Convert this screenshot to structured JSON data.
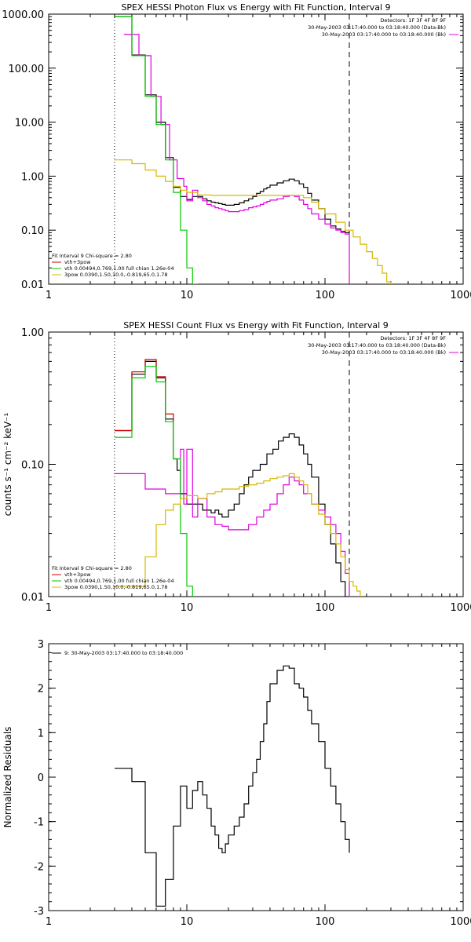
{
  "chart_data": [
    {
      "type": "line",
      "title": "SPEX HESSI Photon Flux vs Energy with Fit Function, Interval 9",
      "xscale": "log",
      "yscale": "log",
      "xlim": [
        1,
        1000
      ],
      "ylim": [
        0.01,
        1000
      ],
      "xticks": [
        1,
        10,
        100,
        1000
      ],
      "xtick_labels": [
        "1",
        "10",
        "100",
        "1000"
      ],
      "yticks": [
        0.01,
        0.1,
        1,
        10,
        100,
        1000
      ],
      "ytick_labels": [
        "0.01",
        "0.10",
        "1.00",
        "10.00",
        "100.00",
        "1000.00"
      ],
      "header_lines": [
        "Detectors: 1F 3F 4F 8F 9F",
        "30-May-2003 03:17:40.000 to 03:18:40.000 (Data-Bk)",
        "30-May-2003 03:17:40.000 to 03:18:40.000 (Bk)"
      ],
      "header_colors": [
        "#000000",
        "#000000",
        "#e000e0"
      ],
      "legend": [
        {
          "text": "Fit Interval 9   Chi-square = 2.80",
          "color": "#000000",
          "swatch": false
        },
        {
          "text": "vth+3pow",
          "color": "#d00000",
          "swatch": true
        },
        {
          "text": "vth 0.00494,0.769,1.00  full chian 1.26e-04",
          "color": "#00cc00",
          "swatch": true
        },
        {
          "text": "3pow 0.0390,1.50,10.0,-0.819,65.0,1.78",
          "color": "#d4b800",
          "swatch": true
        }
      ],
      "vlines": [
        {
          "x": 3,
          "style": "dotted"
        },
        {
          "x": 150,
          "style": "dashed"
        }
      ],
      "series": [
        {
          "color": "#000000",
          "x": [
            3,
            3.5,
            4,
            4.5,
            5,
            5.5,
            6,
            6.5,
            7,
            7.5,
            8,
            8.5,
            9,
            10,
            11,
            12,
            13,
            14,
            15,
            16,
            17,
            18,
            19,
            20,
            22,
            24,
            26,
            28,
            30,
            32,
            34,
            36,
            38,
            40,
            45,
            50,
            55,
            60,
            65,
            70,
            75,
            80,
            90,
            100,
            110,
            120,
            130,
            140,
            150
          ],
          "y": [
            900,
            900,
            175,
            175,
            32,
            32,
            10,
            10,
            2.2,
            2.2,
            0.62,
            0.62,
            0.42,
            0.37,
            0.42,
            0.42,
            0.38,
            0.35,
            0.33,
            0.32,
            0.31,
            0.3,
            0.29,
            0.29,
            0.3,
            0.32,
            0.35,
            0.38,
            0.42,
            0.48,
            0.52,
            0.58,
            0.62,
            0.68,
            0.75,
            0.82,
            0.88,
            0.82,
            0.72,
            0.62,
            0.48,
            0.36,
            0.25,
            0.16,
            0.12,
            0.105,
            0.095,
            0.09,
            0.09
          ]
        },
        {
          "color": "#e000e0",
          "x": [
            3.5,
            4,
            4.5,
            5,
            5.5,
            6,
            6.5,
            7,
            7.5,
            8,
            8.5,
            9,
            9.5,
            10,
            11,
            12,
            13,
            14,
            15,
            16,
            17,
            18,
            19,
            20,
            22,
            24,
            26,
            28,
            30,
            32,
            34,
            36,
            38,
            40,
            45,
            50,
            55,
            60,
            65,
            70,
            75,
            80,
            90,
            100,
            110,
            120,
            130,
            140,
            150
          ],
          "y": [
            420,
            420,
            170,
            170,
            30,
            30,
            9,
            9,
            2,
            2,
            0.9,
            0.9,
            0.65,
            0.35,
            0.55,
            0.4,
            0.35,
            0.3,
            0.28,
            0.26,
            0.25,
            0.24,
            0.23,
            0.22,
            0.22,
            0.23,
            0.24,
            0.26,
            0.27,
            0.28,
            0.3,
            0.32,
            0.34,
            0.36,
            0.38,
            0.42,
            0.44,
            0.42,
            0.36,
            0.3,
            0.25,
            0.2,
            0.16,
            0.13,
            0.11,
            0.1,
            0.09,
            0.085,
            0.01
          ]
        },
        {
          "color": "#00cc00",
          "x": [
            3,
            3.5,
            4,
            4.5,
            5,
            5.5,
            6,
            6.5,
            7,
            7.5,
            8,
            8.5,
            9,
            9.5,
            10,
            11,
            12
          ],
          "y": [
            900,
            900,
            170,
            170,
            30,
            30,
            9,
            9,
            2,
            2,
            0.5,
            0.5,
            0.1,
            0.1,
            0.02,
            0.01,
            0.01
          ]
        },
        {
          "color": "#d4b800",
          "x": [
            3,
            3.5,
            4,
            4.5,
            5,
            5.5,
            6,
            6.5,
            7,
            7.5,
            8,
            8.5,
            9,
            10,
            12,
            15,
            20,
            30,
            40,
            50,
            60,
            70,
            80,
            90,
            100,
            120,
            140,
            160,
            180,
            200,
            220,
            240,
            260,
            280,
            300
          ],
          "y": [
            2,
            2,
            1.7,
            1.7,
            1.3,
            1.3,
            1,
            1,
            0.8,
            0.8,
            0.65,
            0.65,
            0.55,
            0.5,
            0.45,
            0.44,
            0.44,
            0.44,
            0.44,
            0.44,
            0.44,
            0.4,
            0.33,
            0.25,
            0.2,
            0.14,
            0.1,
            0.075,
            0.055,
            0.04,
            0.03,
            0.022,
            0.016,
            0.011,
            0.01
          ]
        }
      ]
    },
    {
      "type": "line",
      "title": "SPEX HESSI Count Flux vs Energy with Fit Function, Interval 9",
      "ylabel": "counts s⁻¹ cm⁻² keV⁻¹",
      "xscale": "log",
      "yscale": "log",
      "xlim": [
        1,
        1000
      ],
      "ylim": [
        0.01,
        1
      ],
      "xticks": [
        1,
        10,
        100,
        1000
      ],
      "xtick_labels": [
        "1",
        "10",
        "100",
        "1000"
      ],
      "yticks": [
        0.01,
        0.1,
        1
      ],
      "ytick_labels": [
        "0.01",
        "0.10",
        "1.00"
      ],
      "header_lines": [
        "Detectors: 1F 3F 4F 8F 9F",
        "30-May-2003 03:17:40.000 to 03:18:40.000 (Data-Bk)",
        "30-May-2003 03:17:40.000 to 03:18:40.000 (Bk)"
      ],
      "header_colors": [
        "#000000",
        "#000000",
        "#e000e0"
      ],
      "legend": [
        {
          "text": "Fit Interval 9   Chi-square = 2.80",
          "color": "#000000",
          "swatch": false
        },
        {
          "text": "vth+3pow",
          "color": "#d00000",
          "swatch": true
        },
        {
          "text": "vth 0.00494,0.769,1.00  full chian 1.26e-04",
          "color": "#00cc00",
          "swatch": true
        },
        {
          "text": "3pow 0.0390,1.50,10.0,-0.819,65.0,1.78",
          "color": "#d4b800",
          "swatch": true
        }
      ],
      "vlines": [
        {
          "x": 3,
          "style": "dotted"
        },
        {
          "x": 150,
          "style": "dashed"
        }
      ],
      "series": [
        {
          "color": "#000000",
          "x": [
            3,
            4,
            5,
            6,
            7,
            8,
            8.5,
            9,
            9.5,
            10,
            11,
            12,
            13,
            14,
            15,
            16,
            17,
            18,
            20,
            22,
            24,
            26,
            28,
            30,
            34,
            38,
            42,
            46,
            50,
            55,
            60,
            65,
            70,
            75,
            80,
            90,
            100,
            110,
            120,
            130,
            140,
            150
          ],
          "y": [
            0.18,
            0.48,
            0.6,
            0.45,
            0.22,
            0.11,
            0.09,
            0.06,
            0.06,
            0.05,
            0.05,
            0.05,
            0.045,
            0.045,
            0.043,
            0.045,
            0.042,
            0.04,
            0.045,
            0.05,
            0.06,
            0.07,
            0.08,
            0.09,
            0.1,
            0.12,
            0.13,
            0.15,
            0.16,
            0.17,
            0.16,
            0.14,
            0.12,
            0.1,
            0.08,
            0.05,
            0.035,
            0.025,
            0.018,
            0.013,
            0.01,
            0.01
          ]
        },
        {
          "color": "#d00000",
          "x": [
            3,
            4,
            5,
            6,
            7,
            8
          ],
          "y": [
            0.18,
            0.5,
            0.62,
            0.46,
            0.24,
            0.12
          ]
        },
        {
          "color": "#e000e0",
          "x": [
            3,
            4,
            5,
            6,
            7,
            8,
            9,
            9.5,
            10,
            11,
            12,
            14,
            16,
            18,
            20,
            24,
            28,
            32,
            36,
            40,
            45,
            50,
            55,
            60,
            65,
            70,
            80,
            90,
            100,
            110,
            120,
            130,
            140,
            150
          ],
          "y": [
            0.085,
            0.085,
            0.065,
            0.065,
            0.06,
            0.06,
            0.13,
            0.05,
            0.13,
            0.04,
            0.055,
            0.04,
            0.035,
            0.034,
            0.032,
            0.032,
            0.035,
            0.04,
            0.045,
            0.05,
            0.06,
            0.07,
            0.08,
            0.075,
            0.07,
            0.06,
            0.05,
            0.045,
            0.04,
            0.035,
            0.03,
            0.022,
            0.015,
            0.01
          ]
        },
        {
          "color": "#00cc00",
          "x": [
            3,
            4,
            5,
            6,
            7,
            8,
            9,
            10,
            11
          ],
          "y": [
            0.16,
            0.45,
            0.55,
            0.42,
            0.21,
            0.11,
            0.03,
            0.012,
            0.01
          ]
        },
        {
          "color": "#d4b800",
          "x": [
            3,
            4,
            5,
            6,
            7,
            8,
            9,
            10,
            12,
            14,
            16,
            18,
            20,
            24,
            28,
            32,
            36,
            40,
            45,
            50,
            55,
            60,
            65,
            70,
            75,
            80,
            90,
            100,
            110,
            120,
            130,
            140,
            150,
            160,
            170,
            180
          ],
          "y": [
            0.012,
            0.012,
            0.02,
            0.035,
            0.045,
            0.05,
            0.055,
            0.058,
            0.055,
            0.06,
            0.062,
            0.065,
            0.065,
            0.068,
            0.07,
            0.072,
            0.075,
            0.078,
            0.08,
            0.082,
            0.085,
            0.08,
            0.075,
            0.07,
            0.06,
            0.05,
            0.042,
            0.035,
            0.03,
            0.025,
            0.02,
            0.016,
            0.013,
            0.012,
            0.011,
            0.01
          ]
        }
      ]
    },
    {
      "type": "line",
      "title": "",
      "ylabel": "Normalized Residuals",
      "xscale": "log",
      "yscale": "linear",
      "xlim": [
        1,
        1000
      ],
      "ylim": [
        -3,
        3
      ],
      "xticks": [
        1,
        10,
        100,
        1000
      ],
      "xtick_labels": [
        "1",
        "10",
        "100",
        "1000"
      ],
      "yticks": [
        -3,
        -2,
        -1,
        0,
        1,
        2,
        3
      ],
      "ytick_labels": [
        "-3",
        "-2",
        "-1",
        "0",
        "1",
        "2",
        "3"
      ],
      "header_lines": [],
      "header_colors": [],
      "legend": [
        {
          "text": "9: 30-May-2003 03:17:40.000 to 03:18:40.000",
          "color": "#000000",
          "swatch": true
        }
      ],
      "vlines": [],
      "series": [
        {
          "color": "#000000",
          "x": [
            3,
            3.5,
            4,
            4.5,
            5,
            5.5,
            6,
            6.5,
            7,
            7.5,
            8,
            8.5,
            9,
            9.5,
            10,
            11,
            12,
            13,
            14,
            15,
            16,
            17,
            18,
            19,
            20,
            22,
            24,
            26,
            28,
            30,
            32,
            34,
            36,
            38,
            40,
            45,
            50,
            55,
            60,
            65,
            70,
            75,
            80,
            90,
            100,
            110,
            120,
            130,
            140,
            150
          ],
          "y": [
            0.2,
            0.2,
            -0.1,
            -0.1,
            -1.7,
            -1.7,
            -2.9,
            -2.9,
            -2.3,
            -2.3,
            -1.1,
            -1.1,
            -0.2,
            -0.2,
            -0.7,
            -0.3,
            -0.1,
            -0.4,
            -0.7,
            -1.1,
            -1.3,
            -1.6,
            -1.7,
            -1.5,
            -1.3,
            -1.1,
            -0.9,
            -0.6,
            -0.2,
            0.1,
            0.4,
            0.8,
            1.2,
            1.7,
            2.1,
            2.4,
            2.5,
            2.45,
            2.1,
            2.0,
            1.8,
            1.5,
            1.2,
            0.8,
            0.2,
            -0.2,
            -0.6,
            -1.0,
            -1.4,
            -1.7
          ]
        }
      ]
    }
  ]
}
